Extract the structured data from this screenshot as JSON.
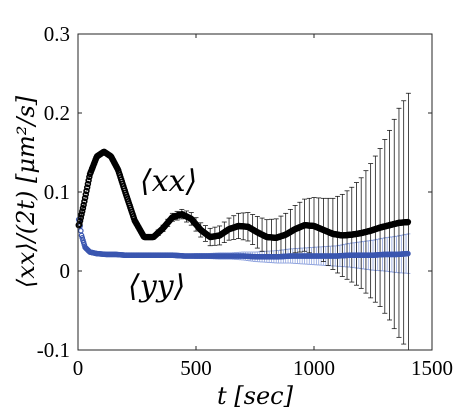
{
  "chart_data": {
    "type": "scatter",
    "title": "",
    "xlabel": "t [sec]",
    "ylabel": "⟨xx⟩/(2t) [μm²/s]",
    "xlim": [
      0,
      1500
    ],
    "ylim": [
      -0.1,
      0.3
    ],
    "xticks": [
      "0",
      "500",
      "1000",
      "1500"
    ],
    "yticks": [
      "-0.1",
      "0",
      "0.1",
      "0.2",
      "0.3"
    ],
    "grid": false,
    "legend": "none",
    "annotations": [
      "⟨xx⟩",
      "⟨yy⟩"
    ],
    "colors": {
      "xx": "#000000",
      "yy": "#3a56b0",
      "yy_error": "#8fa3de"
    },
    "series": [
      {
        "x": [
          5,
          25,
          50,
          80,
          110,
          140,
          170,
          200,
          240,
          280,
          320,
          360,
          400,
          440,
          480,
          520,
          560,
          600,
          640,
          680,
          720,
          760,
          800,
          840,
          880,
          920,
          960,
          1000,
          1040,
          1080,
          1120,
          1160,
          1200,
          1240,
          1280,
          1320,
          1360,
          1400
        ],
        "y": [
          0.058,
          0.085,
          0.122,
          0.145,
          0.151,
          0.145,
          0.128,
          0.1,
          0.064,
          0.043,
          0.043,
          0.054,
          0.068,
          0.072,
          0.066,
          0.052,
          0.043,
          0.045,
          0.053,
          0.057,
          0.056,
          0.049,
          0.043,
          0.042,
          0.046,
          0.053,
          0.058,
          0.057,
          0.052,
          0.047,
          0.045,
          0.046,
          0.048,
          0.051,
          0.055,
          0.058,
          0.061,
          0.062
        ],
        "err": [
          0.001,
          0.001,
          0.001,
          0.002,
          0.002,
          0.002,
          0.002,
          0.002,
          0.002,
          0.003,
          0.003,
          0.004,
          0.005,
          0.006,
          0.008,
          0.009,
          0.011,
          0.012,
          0.014,
          0.016,
          0.018,
          0.02,
          0.022,
          0.024,
          0.027,
          0.03,
          0.033,
          0.036,
          0.04,
          0.045,
          0.052,
          0.06,
          0.07,
          0.085,
          0.1,
          0.12,
          0.145,
          0.163
        ]
      },
      {
        "x": [
          5,
          15,
          30,
          50,
          80,
          120,
          160,
          200,
          250,
          300,
          350,
          400,
          450,
          500,
          550,
          600,
          650,
          700,
          750,
          800,
          850,
          900,
          950,
          1000,
          1050,
          1100,
          1150,
          1200,
          1250,
          1300,
          1350,
          1400
        ],
        "y": [
          0.065,
          0.045,
          0.03,
          0.024,
          0.022,
          0.021,
          0.021,
          0.02,
          0.02,
          0.02,
          0.02,
          0.02,
          0.019,
          0.019,
          0.019,
          0.019,
          0.019,
          0.019,
          0.018,
          0.018,
          0.018,
          0.019,
          0.019,
          0.019,
          0.019,
          0.019,
          0.02,
          0.02,
          0.02,
          0.021,
          0.021,
          0.022
        ],
        "err": [
          0.001,
          0.001,
          0.001,
          0.001,
          0.001,
          0.001,
          0.001,
          0.001,
          0.001,
          0.001,
          0.002,
          0.002,
          0.002,
          0.003,
          0.003,
          0.004,
          0.004,
          0.005,
          0.006,
          0.007,
          0.008,
          0.009,
          0.01,
          0.011,
          0.012,
          0.013,
          0.015,
          0.017,
          0.019,
          0.021,
          0.023,
          0.025
        ]
      }
    ]
  }
}
